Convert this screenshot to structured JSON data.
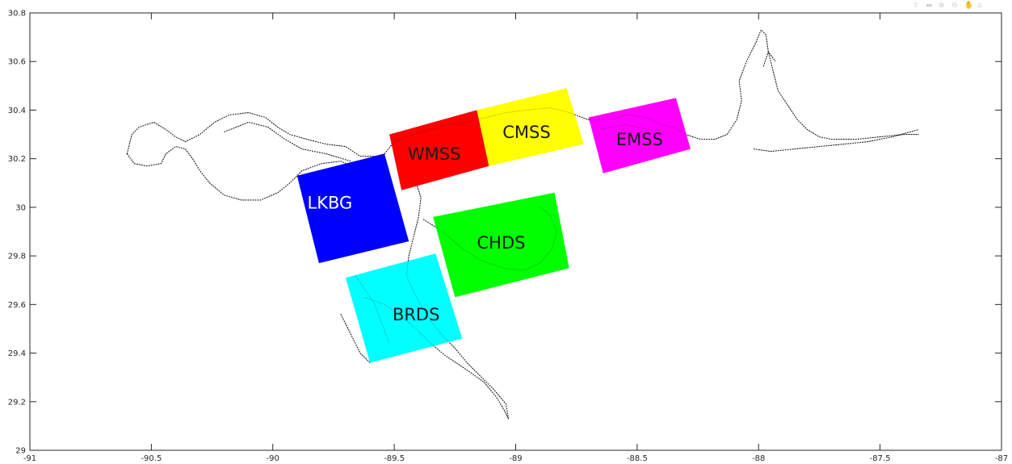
{
  "toolbar": {
    "icons": [
      "export-icon",
      "brush-icon",
      "zoom-in-icon",
      "zoom-out-icon",
      "pan-icon",
      "home-icon"
    ]
  },
  "chart_data": {
    "type": "map",
    "xlim": [
      -91,
      -87
    ],
    "ylim": [
      29,
      30.8
    ],
    "grid": false,
    "box": true,
    "x_ticks": [
      -91,
      -90.5,
      -90,
      -89.5,
      -89,
      -88.5,
      -88,
      -87.5,
      -87
    ],
    "x_tick_labels": [
      "-91",
      "-90.5",
      "-90",
      "-89.5",
      "-89",
      "-88.5",
      "-88",
      "-87.5",
      "-87"
    ],
    "y_ticks": [
      29,
      29.2,
      29.4,
      29.6,
      29.8,
      30,
      30.2,
      30.4,
      30.6,
      30.8
    ],
    "y_tick_labels": [
      "29",
      "29.2",
      "29.4",
      "29.6",
      "29.8",
      "30",
      "30.2",
      "30.4",
      "30.6",
      "30.8"
    ],
    "regions": [
      {
        "name": "LKBG",
        "color": "#0000ff",
        "text_color": "#ffffff",
        "corners": [
          [
            -89.9,
            30.13
          ],
          [
            -89.54,
            30.22
          ],
          [
            -89.44,
            29.86
          ],
          [
            -89.81,
            29.77
          ]
        ],
        "label_pos": [
          -89.765,
          30.015
        ]
      },
      {
        "name": "WMSS",
        "color": "#ff0000",
        "text_color": "#1a1a1a",
        "corners": [
          [
            -89.52,
            30.3
          ],
          [
            -89.16,
            30.4
          ],
          [
            -89.11,
            30.17
          ],
          [
            -89.47,
            30.07
          ]
        ],
        "label_pos": [
          -89.335,
          30.215
        ]
      },
      {
        "name": "CMSS",
        "color": "#ffff00",
        "text_color": "#1a1a1a",
        "corners": [
          [
            -89.16,
            30.4
          ],
          [
            -88.79,
            30.49
          ],
          [
            -88.72,
            30.26
          ],
          [
            -89.11,
            30.17
          ]
        ],
        "label_pos": [
          -88.955,
          30.305
        ]
      },
      {
        "name": "EMSS",
        "color": "#ff00ff",
        "text_color": "#1a1a1a",
        "corners": [
          [
            -88.7,
            30.37
          ],
          [
            -88.34,
            30.45
          ],
          [
            -88.28,
            30.24
          ],
          [
            -88.64,
            30.14
          ]
        ],
        "label_pos": [
          -88.49,
          30.275
        ]
      },
      {
        "name": "CHDS",
        "color": "#00ff00",
        "text_color": "#1a1a1a",
        "corners": [
          [
            -89.34,
            29.96
          ],
          [
            -88.84,
            30.06
          ],
          [
            -88.78,
            29.75
          ],
          [
            -89.25,
            29.63
          ]
        ],
        "label_pos": [
          -89.06,
          29.85
        ]
      },
      {
        "name": "BRDS",
        "color": "#00ffff",
        "text_color": "#1a1a1a",
        "corners": [
          [
            -89.7,
            29.71
          ],
          [
            -89.33,
            29.81
          ],
          [
            -89.22,
            29.46
          ],
          [
            -89.6,
            29.36
          ]
        ],
        "label_pos": [
          -89.41,
          29.555
        ]
      }
    ],
    "coastlines": [
      [
        [
          -90.6,
          30.22
        ],
        [
          -90.58,
          30.3
        ],
        [
          -90.55,
          30.33
        ],
        [
          -90.49,
          30.35
        ],
        [
          -90.44,
          30.32
        ],
        [
          -90.4,
          30.29
        ],
        [
          -90.36,
          30.27
        ],
        [
          -90.3,
          30.3
        ],
        [
          -90.24,
          30.35
        ],
        [
          -90.18,
          30.38
        ],
        [
          -90.1,
          30.39
        ],
        [
          -90.03,
          30.37
        ],
        [
          -89.98,
          30.33
        ],
        [
          -89.93,
          30.3
        ],
        [
          -89.86,
          30.28
        ],
        [
          -89.78,
          30.26
        ],
        [
          -89.7,
          30.25
        ],
        [
          -89.64,
          30.21
        ],
        [
          -89.58,
          30.21
        ],
        [
          -89.54,
          30.22
        ]
      ],
      [
        [
          -90.6,
          30.22
        ],
        [
          -90.57,
          30.18
        ],
        [
          -90.52,
          30.17
        ],
        [
          -90.46,
          30.18
        ],
        [
          -90.44,
          30.22
        ],
        [
          -90.4,
          30.25
        ],
        [
          -90.36,
          30.24
        ],
        [
          -90.33,
          30.2
        ],
        [
          -90.3,
          30.15
        ],
        [
          -90.26,
          30.1
        ],
        [
          -90.2,
          30.05
        ],
        [
          -90.13,
          30.03
        ],
        [
          -90.05,
          30.03
        ],
        [
          -89.98,
          30.06
        ],
        [
          -89.93,
          30.1
        ],
        [
          -89.88,
          30.15
        ],
        [
          -89.8,
          30.18
        ],
        [
          -89.72,
          30.19
        ],
        [
          -89.66,
          30.16
        ]
      ],
      [
        [
          -90.2,
          30.31
        ],
        [
          -90.1,
          30.35
        ],
        [
          -90.02,
          30.33
        ],
        [
          -89.95,
          30.28
        ],
        [
          -89.88,
          30.24
        ],
        [
          -89.78,
          30.22
        ],
        [
          -89.68,
          30.19
        ]
      ],
      [
        [
          -89.54,
          30.22
        ],
        [
          -89.5,
          30.27
        ],
        [
          -89.42,
          30.3
        ],
        [
          -89.35,
          30.32
        ],
        [
          -89.28,
          30.34
        ],
        [
          -89.2,
          30.35
        ],
        [
          -89.12,
          30.37
        ],
        [
          -89.04,
          30.39
        ],
        [
          -88.95,
          30.4
        ],
        [
          -88.86,
          30.41
        ],
        [
          -88.78,
          30.39
        ],
        [
          -88.7,
          30.36
        ],
        [
          -88.62,
          30.36
        ],
        [
          -88.54,
          30.38
        ],
        [
          -88.46,
          30.37
        ],
        [
          -88.4,
          30.34
        ],
        [
          -88.35,
          30.33
        ],
        [
          -88.3,
          30.3
        ],
        [
          -88.24,
          30.28
        ],
        [
          -88.18,
          30.28
        ],
        [
          -88.13,
          30.3
        ],
        [
          -88.09,
          30.36
        ],
        [
          -88.07,
          30.44
        ],
        [
          -88.08,
          30.52
        ],
        [
          -88.05,
          30.6
        ],
        [
          -88.01,
          30.68
        ],
        [
          -87.99,
          30.73
        ],
        [
          -87.97,
          30.71
        ],
        [
          -87.96,
          30.64
        ],
        [
          -87.94,
          30.56
        ],
        [
          -87.92,
          30.48
        ],
        [
          -87.88,
          30.42
        ],
        [
          -87.84,
          30.36
        ],
        [
          -87.8,
          30.32
        ],
        [
          -87.75,
          30.29
        ],
        [
          -87.7,
          30.28
        ],
        [
          -87.6,
          30.28
        ],
        [
          -87.5,
          30.29
        ],
        [
          -87.4,
          30.3
        ],
        [
          -87.34,
          30.3
        ]
      ],
      [
        [
          -88.02,
          30.24
        ],
        [
          -87.95,
          30.23
        ],
        [
          -87.85,
          30.24
        ],
        [
          -87.75,
          30.25
        ],
        [
          -87.65,
          30.26
        ],
        [
          -87.55,
          30.27
        ],
        [
          -87.45,
          30.29
        ],
        [
          -87.34,
          30.32
        ]
      ],
      [
        [
          -89.38,
          29.95
        ],
        [
          -89.3,
          29.9
        ],
        [
          -89.22,
          29.83
        ],
        [
          -89.14,
          29.78
        ],
        [
          -89.05,
          29.75
        ],
        [
          -88.97,
          29.74
        ],
        [
          -88.9,
          29.77
        ],
        [
          -88.85,
          29.83
        ],
        [
          -88.83,
          29.9
        ],
        [
          -88.86,
          29.97
        ],
        [
          -88.9,
          30.0
        ]
      ],
      [
        [
          -89.62,
          29.63
        ],
        [
          -89.54,
          29.6
        ],
        [
          -89.47,
          29.55
        ],
        [
          -89.41,
          29.5
        ],
        [
          -89.35,
          29.44
        ],
        [
          -89.29,
          29.39
        ],
        [
          -89.2,
          29.33
        ],
        [
          -89.13,
          29.28
        ],
        [
          -89.08,
          29.22
        ],
        [
          -89.05,
          29.17
        ],
        [
          -89.03,
          29.13
        ],
        [
          -89.04,
          29.19
        ],
        [
          -89.09,
          29.25
        ],
        [
          -89.14,
          29.3
        ],
        [
          -89.2,
          29.36
        ],
        [
          -89.25,
          29.42
        ],
        [
          -89.3,
          29.47
        ],
        [
          -89.34,
          29.52
        ],
        [
          -89.38,
          29.58
        ],
        [
          -89.42,
          29.65
        ],
        [
          -89.45,
          29.72
        ],
        [
          -89.44,
          29.8
        ],
        [
          -89.42,
          29.88
        ],
        [
          -89.4,
          29.96
        ],
        [
          -89.39,
          30.04
        ],
        [
          -89.41,
          30.1
        ]
      ],
      [
        [
          -89.72,
          29.56
        ],
        [
          -89.68,
          29.48
        ],
        [
          -89.64,
          29.4
        ],
        [
          -89.6,
          29.36
        ]
      ],
      [
        [
          -89.66,
          29.72
        ],
        [
          -89.62,
          29.66
        ],
        [
          -89.58,
          29.6
        ],
        [
          -89.55,
          29.52
        ],
        [
          -89.52,
          29.44
        ]
      ],
      [
        [
          -88.45,
          30.32
        ],
        [
          -88.55,
          30.34
        ],
        [
          -88.65,
          30.32
        ]
      ],
      [
        [
          -87.98,
          30.58
        ],
        [
          -87.96,
          30.64
        ],
        [
          -87.93,
          30.6
        ]
      ]
    ]
  }
}
